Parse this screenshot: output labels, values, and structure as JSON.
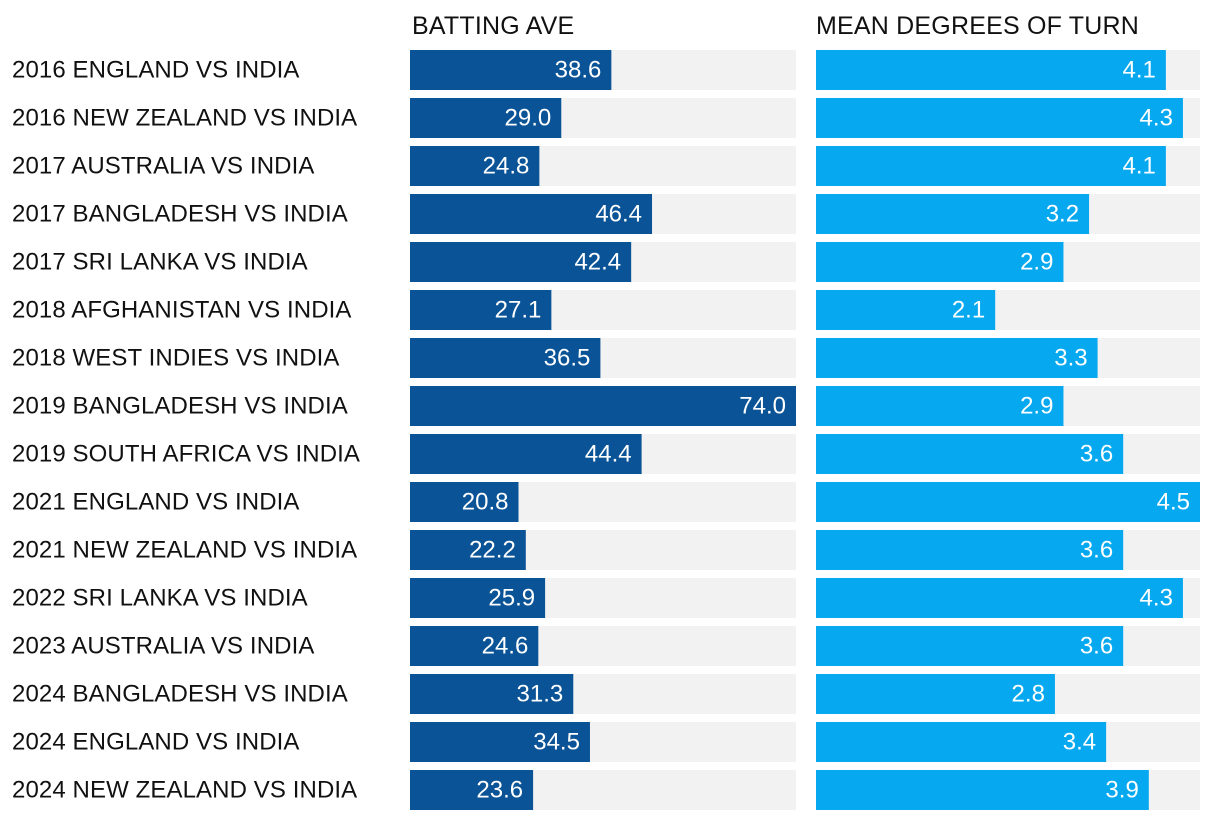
{
  "chart_data": {
    "type": "bar",
    "orientation": "horizontal",
    "layout": "two-panel",
    "categories": [
      "2016 ENGLAND VS INDIA",
      "2016 NEW ZEALAND VS INDIA",
      "2017 AUSTRALIA VS INDIA",
      "2017 BANGLADESH VS INDIA",
      "2017 SRI LANKA VS INDIA",
      "2018 AFGHANISTAN VS INDIA",
      "2018 WEST INDIES VS INDIA",
      "2019 BANGLADESH VS INDIA",
      "2019 SOUTH AFRICA VS INDIA",
      "2021 ENGLAND VS INDIA",
      "2021 NEW ZEALAND VS INDIA",
      "2022 SRI LANKA VS INDIA",
      "2023 AUSTRALIA VS INDIA",
      "2024 BANGLADESH VS INDIA",
      "2024 ENGLAND VS INDIA",
      "2024 NEW ZEALAND VS INDIA"
    ],
    "series": [
      {
        "name": "BATTING AVE",
        "color": "#0a5396",
        "xlim": [
          0,
          74.0
        ],
        "values": [
          38.6,
          29.0,
          24.8,
          46.4,
          42.4,
          27.1,
          36.5,
          74.0,
          44.4,
          20.8,
          22.2,
          25.9,
          24.6,
          31.3,
          34.5,
          23.6
        ],
        "value_labels": [
          "38.6",
          "29.0",
          "24.8",
          "46.4",
          "42.4",
          "27.1",
          "36.5",
          "74.0",
          "44.4",
          "20.8",
          "22.2",
          "25.9",
          "24.6",
          "31.3",
          "34.5",
          "23.6"
        ]
      },
      {
        "name": "MEAN DEGREES OF TURN",
        "color": "#06a8f0",
        "xlim": [
          0,
          4.5
        ],
        "values": [
          4.1,
          4.3,
          4.1,
          3.2,
          2.9,
          2.1,
          3.3,
          2.9,
          3.6,
          4.5,
          3.6,
          4.3,
          3.6,
          2.8,
          3.4,
          3.9
        ],
        "value_labels": [
          "4.1",
          "4.3",
          "4.1",
          "3.2",
          "2.9",
          "2.1",
          "3.3",
          "2.9",
          "3.6",
          "4.5",
          "3.6",
          "4.3",
          "3.6",
          "2.8",
          "3.4",
          "3.9"
        ]
      }
    ],
    "background_track_color": "#f2f2f2",
    "text_color": "#111111",
    "value_label_color": "#ffffff",
    "grid": false,
    "legend": "none"
  }
}
